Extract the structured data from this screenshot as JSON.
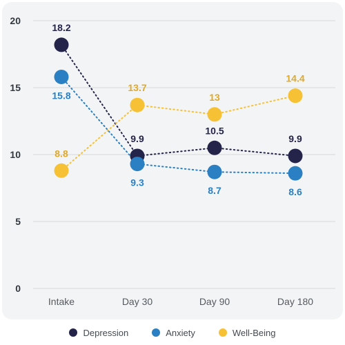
{
  "chart_data": {
    "type": "line",
    "categories": [
      "Intake",
      "Day 30",
      "Day 90",
      "Day 180"
    ],
    "ylim": [
      0,
      20
    ],
    "yticks": [
      0,
      5,
      10,
      15,
      20
    ],
    "grid": true,
    "legend_position": "bottom-center",
    "series": [
      {
        "name": "Depression",
        "color": "#24244a",
        "values": [
          18.2,
          9.9,
          10.5,
          9.9
        ]
      },
      {
        "name": "Anxiety",
        "color": "#2b7fc3",
        "values": [
          15.8,
          9.3,
          8.7,
          8.6
        ]
      },
      {
        "name": "Well-Being",
        "color": "#f6c134",
        "values": [
          8.8,
          13.7,
          13,
          14.4
        ]
      }
    ]
  }
}
